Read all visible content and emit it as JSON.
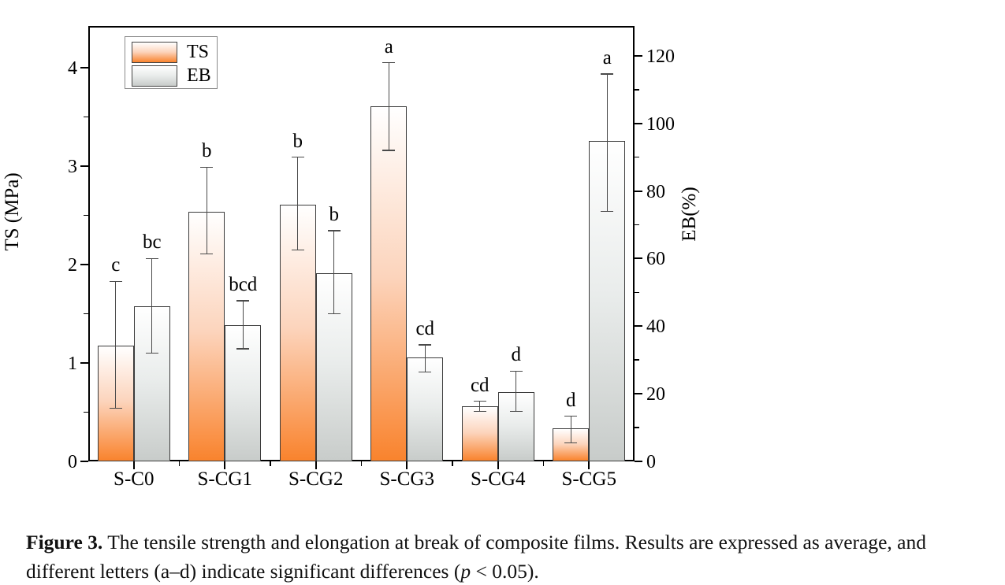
{
  "figure": {
    "caption": {
      "label": "Figure 3.",
      "body_before_p": " The tensile strength and elongation at break of composite films. Results are expressed as average, and different letters (a–d) indicate significant differences (",
      "p_symbol": "p",
      "body_after_p": " < 0.05)."
    }
  },
  "chart_data": {
    "type": "bar",
    "title": "",
    "categories": [
      "S-C0",
      "S-CG1",
      "S-CG2",
      "S-CG3",
      "S-CG4",
      "S-CG5"
    ],
    "series": [
      {
        "name": "TS",
        "axis": "left",
        "values": [
          1.18,
          2.54,
          2.61,
          3.61,
          0.56,
          0.34
        ],
        "err_up": [
          0.65,
          0.45,
          0.48,
          0.44,
          0.05,
          0.12
        ],
        "err_down": [
          0.64,
          0.43,
          0.46,
          0.45,
          0.05,
          0.15
        ],
        "letters": [
          "c",
          "b",
          "b",
          "a",
          "cd",
          "d"
        ],
        "color_top": "#ffffff",
        "color_mid": "#fcd4bc",
        "color_bottom": "#f9832d"
      },
      {
        "name": "EB",
        "axis": "right",
        "values": [
          46.0,
          40.3,
          55.7,
          30.7,
          20.4,
          94.8
        ],
        "err_up": [
          14.0,
          7.2,
          12.6,
          3.8,
          6.3,
          19.8
        ],
        "err_down": [
          14.0,
          7.0,
          12.0,
          4.2,
          5.6,
          20.8
        ],
        "letters": [
          "bc",
          "bcd",
          "b",
          "cd",
          "d",
          "a"
        ],
        "color_top": "#ffffff",
        "color_mid": "#e9eceb",
        "color_bottom": "#c8ccca"
      }
    ],
    "left_axis": {
      "label": "TS (MPa)",
      "ticks": [
        0,
        1,
        2,
        3,
        4
      ],
      "minor_ticks": [
        0.5,
        1.5,
        2.5,
        3.5
      ],
      "min": 0,
      "max": 4.424
    },
    "right_axis": {
      "label": "EB(%)",
      "ticks": [
        0,
        20,
        40,
        60,
        80,
        100,
        120
      ],
      "minor_ticks": [
        10,
        30,
        50,
        70,
        90,
        110
      ],
      "min": 0,
      "max": 128.85
    },
    "legend_position": "top-left",
    "grid": "off",
    "significance_note": "different letters (a-d) indicate significant differences (p < 0.05)"
  }
}
